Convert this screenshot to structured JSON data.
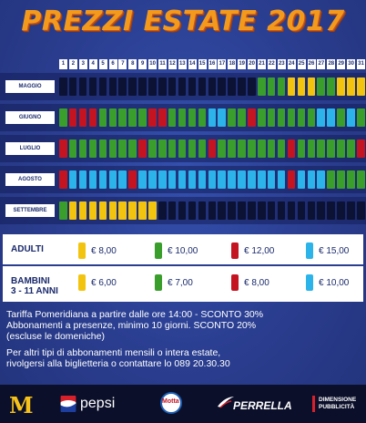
{
  "title": "PREZZI ESTATE 2017",
  "days": [
    "1",
    "2",
    "3",
    "4",
    "5",
    "6",
    "7",
    "8",
    "9",
    "10",
    "11",
    "12",
    "13",
    "14",
    "15",
    "16",
    "17",
    "18",
    "19",
    "20",
    "21",
    "22",
    "23",
    "24",
    "25",
    "26",
    "27",
    "28",
    "29",
    "30",
    "31"
  ],
  "colors": {
    "B": "#0b1233",
    "G": "#3a9e2c",
    "Y": "#f2c40f",
    "R": "#c41422",
    "C": "#2bb3ea"
  },
  "months": [
    {
      "label": "MAGGIO",
      "cells": "BBBBBBBBBBBBBBBBBBBBGGGYYYGGYYYY"
    },
    {
      "label": "GIUGNO",
      "cells": "GRRRGGGGGRRGGGGCCGGRGGGGGGCCGCGB"
    },
    {
      "label": "LUGLIO",
      "cells": "RGGGGGGGRGGGGGGRGGGGGGGRGGGGGGRR"
    },
    {
      "label": "AGOSTO",
      "cells": "RCCCCCCRCCCCCCCCCCCCCCCRCCCGGGGG"
    },
    {
      "label": "SETTEMBRE",
      "cells": "GYYYYYYYYYBBBBBBBBBBBBBBBBBBBBBB"
    }
  ],
  "prices": {
    "adulti": {
      "label": "ADULTI",
      "values": [
        "€ 8,00",
        "€ 10,00",
        "€ 12,00",
        "€ 15,00"
      ]
    },
    "bambini": {
      "label1": "BAMBINI",
      "label2": "3 - 11 ANNI",
      "values": [
        "€ 6,00",
        "€ 7,00",
        "€ 8,00",
        "€ 10,00"
      ]
    }
  },
  "info": {
    "line1": "Tariffa Pomeridiana a partire dalle ore 14:00 - SCONTO 30%",
    "line2": "Abbonamenti a presenze, minimo 10 giorni. SCONTO 20%",
    "line3": "(escluse le domeniche)",
    "line4": "Per altri tipi di abbonamenti mensili o intera estate,",
    "line5": "rivolgersi alla biglietteria o contattare lo 089 20.30.30"
  },
  "sponsors": {
    "pepsi": "pepsi",
    "motta": "Motta",
    "perrella": "PERRELLA",
    "dimensione1": "DIMENSIONE",
    "dimensione2": "PUBBLICITÀ"
  }
}
